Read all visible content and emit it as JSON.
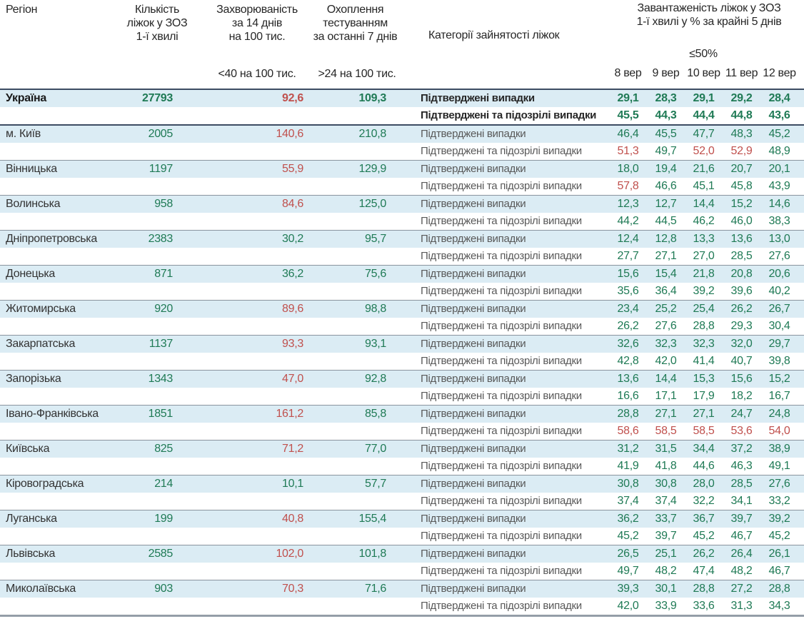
{
  "header": {
    "col_region": "Регіон",
    "col_beds": "Кількість\nліжок у ЗОЗ\n1-ї хвилі",
    "col_incidence": "Захворюваність\nза 14 днів\nна 100 тис.",
    "col_testing": "Охоплення\nтестуванням\nза останні 7 днів",
    "col_categories": "Категорії зайнятості ліжок",
    "col_occupancy": "Завантаженість ліжок у ЗОЗ\n1-ї хвилі у % за крайні 5 днів",
    "incidence_threshold_note": "<40 на 100 тис.",
    "testing_threshold_note": ">24 на 100 тис.",
    "occupancy_threshold_note": "≤50%",
    "dates": [
      "8 вер",
      "9 вер",
      "10 вер",
      "11 вер",
      "12 вер"
    ]
  },
  "category_labels": {
    "confirmed": "Підтверджені випадки",
    "confirmed_suspected": "Підтверджені та підозрілі випадки"
  },
  "colors": {
    "good": "#1f7a55",
    "bad": "#c0504d",
    "row_highlight": "#dbecf4",
    "header_border": "#3d4c63",
    "block_border": "#8a949e"
  },
  "thresholds": {
    "incidence_red_at_or_above": 40,
    "occupancy_red_above": 50
  },
  "regions": [
    {
      "name": "Україна",
      "is_total": true,
      "beds": "27793",
      "incidence": "92,6",
      "testing": "109,3",
      "confirmed": [
        "29,1",
        "28,3",
        "29,1",
        "29,2",
        "28,4"
      ],
      "confirmed_suspected": [
        "45,5",
        "44,3",
        "44,4",
        "44,8",
        "43,6"
      ]
    },
    {
      "name": "м. Київ",
      "is_total": false,
      "beds": "2005",
      "incidence": "140,6",
      "testing": "210,8",
      "confirmed": [
        "46,4",
        "45,5",
        "47,7",
        "48,3",
        "45,2"
      ],
      "confirmed_suspected": [
        "51,3",
        "49,7",
        "52,0",
        "52,9",
        "48,9"
      ]
    },
    {
      "name": "Вінницька",
      "is_total": false,
      "beds": "1197",
      "incidence": "55,9",
      "testing": "129,9",
      "confirmed": [
        "18,0",
        "19,4",
        "21,6",
        "20,7",
        "20,1"
      ],
      "confirmed_suspected": [
        "57,8",
        "46,6",
        "45,1",
        "45,8",
        "43,9"
      ]
    },
    {
      "name": "Волинська",
      "is_total": false,
      "beds": "958",
      "incidence": "84,6",
      "testing": "125,0",
      "confirmed": [
        "12,3",
        "12,7",
        "14,4",
        "15,2",
        "14,6"
      ],
      "confirmed_suspected": [
        "44,2",
        "44,5",
        "46,2",
        "46,0",
        "38,3"
      ]
    },
    {
      "name": "Дніпропетровська",
      "is_total": false,
      "beds": "2383",
      "incidence": "30,2",
      "testing": "95,7",
      "confirmed": [
        "12,4",
        "12,8",
        "13,3",
        "13,6",
        "13,0"
      ],
      "confirmed_suspected": [
        "27,7",
        "27,1",
        "27,0",
        "28,5",
        "27,6"
      ]
    },
    {
      "name": "Донецька",
      "is_total": false,
      "beds": "871",
      "incidence": "36,2",
      "testing": "75,6",
      "confirmed": [
        "15,6",
        "15,4",
        "21,8",
        "20,8",
        "20,6"
      ],
      "confirmed_suspected": [
        "35,6",
        "36,4",
        "39,2",
        "39,6",
        "40,2"
      ]
    },
    {
      "name": "Житомирська",
      "is_total": false,
      "beds": "920",
      "incidence": "89,6",
      "testing": "98,8",
      "confirmed": [
        "23,4",
        "25,2",
        "25,4",
        "26,2",
        "26,7"
      ],
      "confirmed_suspected": [
        "26,2",
        "27,6",
        "28,8",
        "29,3",
        "30,4"
      ]
    },
    {
      "name": "Закарпатська",
      "is_total": false,
      "beds": "1137",
      "incidence": "93,3",
      "testing": "93,1",
      "confirmed": [
        "32,6",
        "32,3",
        "32,3",
        "32,0",
        "29,7"
      ],
      "confirmed_suspected": [
        "42,8",
        "42,0",
        "41,4",
        "40,7",
        "39,8"
      ]
    },
    {
      "name": "Запорізька",
      "is_total": false,
      "beds": "1343",
      "incidence": "47,0",
      "testing": "92,8",
      "confirmed": [
        "13,6",
        "14,4",
        "15,3",
        "15,6",
        "15,2"
      ],
      "confirmed_suspected": [
        "16,6",
        "17,1",
        "17,9",
        "18,2",
        "16,7"
      ]
    },
    {
      "name": "Івано-Франківська",
      "is_total": false,
      "beds": "1851",
      "incidence": "161,2",
      "testing": "85,8",
      "confirmed": [
        "28,8",
        "27,1",
        "27,1",
        "24,7",
        "24,8"
      ],
      "confirmed_suspected": [
        "58,6",
        "58,5",
        "58,5",
        "53,6",
        "54,0"
      ]
    },
    {
      "name": "Київська",
      "is_total": false,
      "beds": "825",
      "incidence": "71,2",
      "testing": "77,0",
      "confirmed": [
        "31,2",
        "31,5",
        "34,4",
        "37,2",
        "38,9"
      ],
      "confirmed_suspected": [
        "41,9",
        "41,8",
        "44,6",
        "46,3",
        "49,1"
      ]
    },
    {
      "name": "Кіровоградська",
      "is_total": false,
      "beds": "214",
      "incidence": "10,1",
      "testing": "57,7",
      "confirmed": [
        "30,8",
        "30,8",
        "28,0",
        "28,5",
        "27,6"
      ],
      "confirmed_suspected": [
        "37,4",
        "37,4",
        "32,2",
        "34,1",
        "33,2"
      ]
    },
    {
      "name": "Луганська",
      "is_total": false,
      "beds": "199",
      "incidence": "40,8",
      "testing": "155,4",
      "confirmed": [
        "36,2",
        "33,7",
        "36,7",
        "39,7",
        "39,2"
      ],
      "confirmed_suspected": [
        "45,2",
        "39,7",
        "45,2",
        "46,7",
        "45,2"
      ]
    },
    {
      "name": "Львівська",
      "is_total": false,
      "beds": "2585",
      "incidence": "102,0",
      "testing": "101,8",
      "confirmed": [
        "26,5",
        "25,1",
        "26,2",
        "26,4",
        "26,1"
      ],
      "confirmed_suspected": [
        "49,7",
        "48,2",
        "47,4",
        "48,2",
        "46,7"
      ]
    },
    {
      "name": "Миколаївська",
      "is_total": false,
      "beds": "903",
      "incidence": "70,3",
      "testing": "71,6",
      "confirmed": [
        "39,3",
        "30,1",
        "28,8",
        "27,2",
        "28,8"
      ],
      "confirmed_suspected": [
        "42,0",
        "33,9",
        "33,6",
        "31,3",
        "34,3"
      ]
    }
  ]
}
